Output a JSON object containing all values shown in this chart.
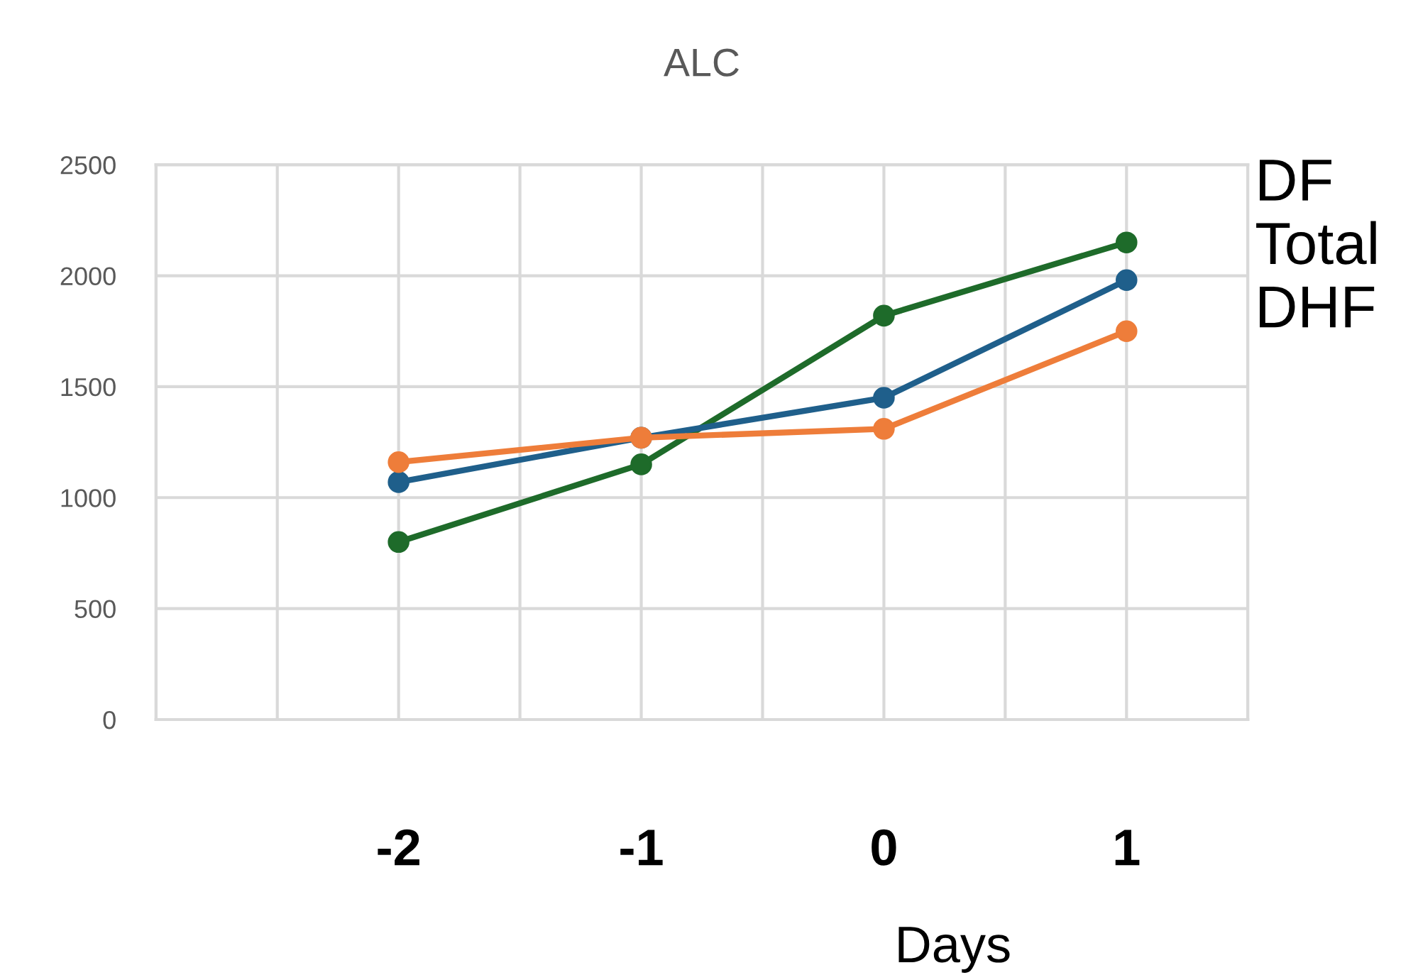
{
  "chart_data": {
    "type": "line",
    "title": "ALC",
    "xlabel": "Days",
    "x": [
      -2,
      -1,
      0,
      1
    ],
    "series": [
      {
        "name": "DF",
        "color": "#1e6b2a",
        "values": [
          800,
          1150,
          1820,
          2150
        ]
      },
      {
        "name": "Total",
        "color": "#1f5f8b",
        "values": [
          1070,
          1270,
          1450,
          1980
        ]
      },
      {
        "name": "DHF",
        "color": "#ee7d3a",
        "values": [
          1160,
          1270,
          1310,
          1750
        ]
      }
    ],
    "xlim": [
      -3,
      1.5
    ],
    "xticks": [
      {
        "value": -3,
        "label": null
      },
      {
        "value": -2.5,
        "label": null
      },
      -2,
      {
        "value": -1.5,
        "label": null
      },
      -1,
      {
        "value": -0.5,
        "label": null
      },
      0,
      {
        "value": 0.5,
        "label": null
      },
      1,
      {
        "value": 1.5,
        "label": null
      }
    ],
    "ylim": [
      0,
      2500
    ],
    "yticks": [
      0,
      500,
      1000,
      1500,
      2000,
      2500
    ],
    "grid": true,
    "legend": false,
    "marker": "circle",
    "line_style": "solid"
  }
}
